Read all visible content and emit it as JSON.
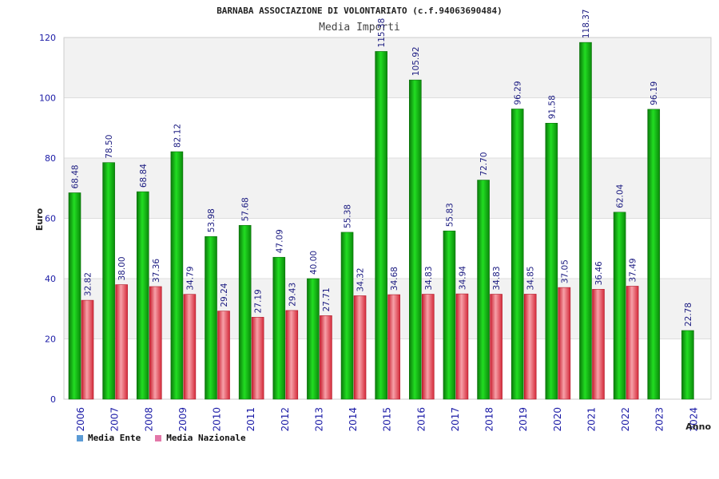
{
  "chart_data": {
    "type": "bar",
    "title": "BARNABA ASSOCIAZIONE DI VOLONTARIATO (c.f.94063690484)",
    "subtitle": "Media Importi",
    "xlabel": "Anno",
    "ylabel": "Euro",
    "ylim": [
      0,
      120
    ],
    "yticks": [
      0,
      20,
      40,
      60,
      80,
      100,
      120
    ],
    "grid": true,
    "legend_position": "bottom-left",
    "categories": [
      "2006",
      "2007",
      "2008",
      "2009",
      "2010",
      "2011",
      "2012",
      "2013",
      "2014",
      "2015",
      "2016",
      "2017",
      "2018",
      "2019",
      "2020",
      "2021",
      "2022",
      "2023",
      "2024"
    ],
    "series": [
      {
        "name": "Media Ente",
        "legend_color": "#5b9bd5",
        "bar_color": "#11aa11",
        "values": [
          68.48,
          78.5,
          68.84,
          82.12,
          53.98,
          57.68,
          47.09,
          40.0,
          55.38,
          115.38,
          105.92,
          55.83,
          72.7,
          96.29,
          91.58,
          118.37,
          62.04,
          96.19,
          22.78
        ],
        "labels": [
          "68.48",
          "78.50",
          "68.84",
          "82.12",
          "53.98",
          "57.68",
          "47.09",
          "40.00",
          "55.38",
          "115.38",
          "105.92",
          "55.83",
          "72.70",
          "96.29",
          "91.58",
          "118.37",
          "62.04",
          "96.19",
          "22.78"
        ]
      },
      {
        "name": "Media Nazionale",
        "legend_color": "#e377a8",
        "bar_color": "#e23a3a",
        "values": [
          32.82,
          38.0,
          37.36,
          34.79,
          29.24,
          27.19,
          29.43,
          27.71,
          34.32,
          34.68,
          34.83,
          34.94,
          34.83,
          34.85,
          37.05,
          36.46,
          37.49,
          null,
          null
        ],
        "labels": [
          "32.82",
          "38.00",
          "37.36",
          "34.79",
          "29.24",
          "27.19",
          "29.43",
          "27.71",
          "34.32",
          "34.68",
          "34.83",
          "34.94",
          "34.83",
          "34.85",
          "37.05",
          "36.46",
          "37.49",
          null,
          null
        ]
      }
    ]
  }
}
